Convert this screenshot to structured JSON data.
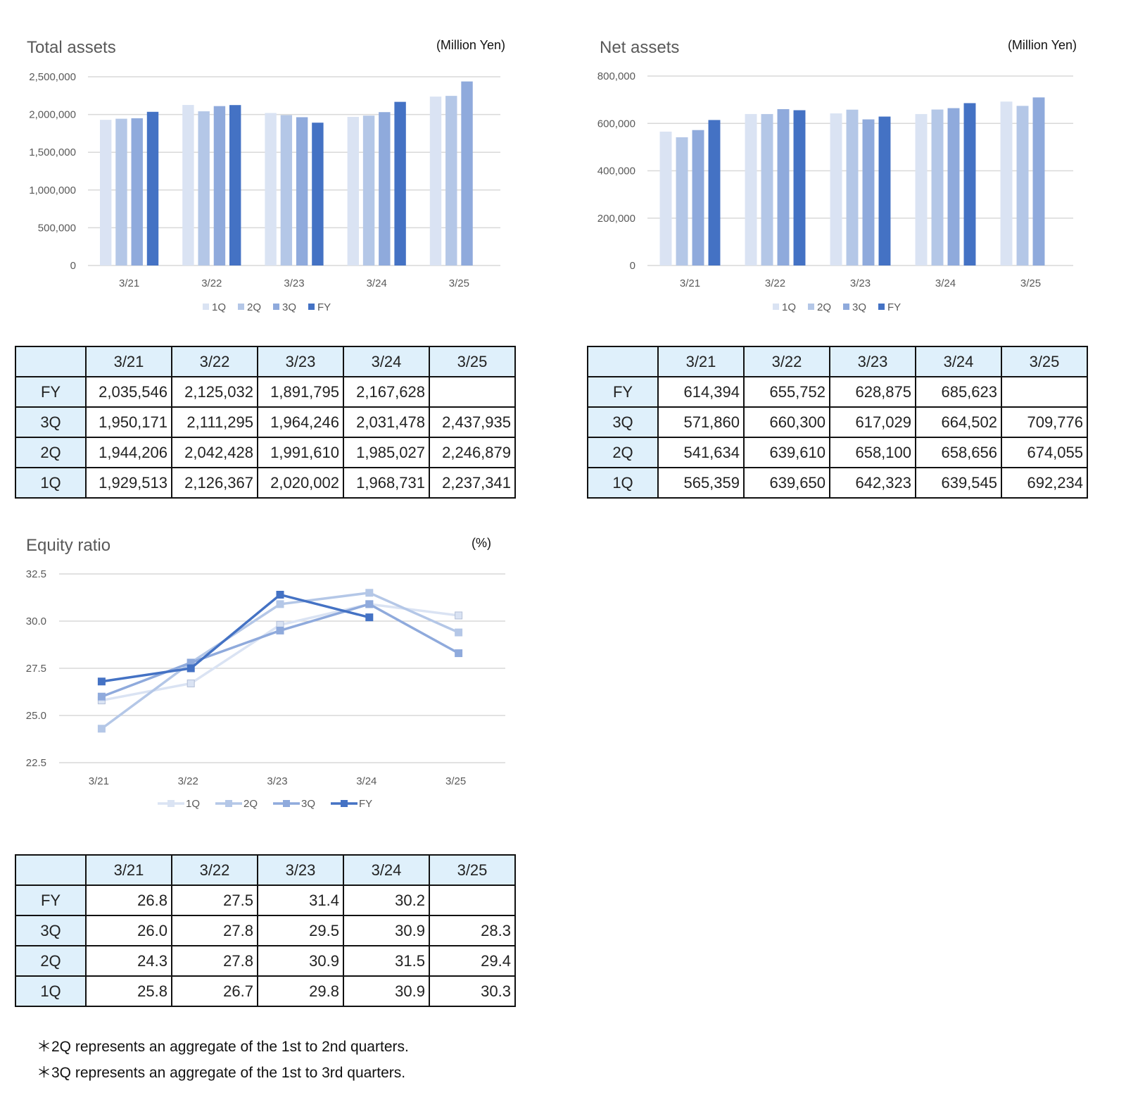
{
  "colors": {
    "1Q": "#dae3f3",
    "2Q": "#b4c7e7",
    "3Q": "#8faadc",
    "FY": "#4472c4",
    "header_bg": "#dff0fb"
  },
  "chart_data": [
    {
      "type": "bar",
      "title": "Total assets",
      "unit": "(Million Yen)",
      "categories": [
        "3/21",
        "3/22",
        "3/23",
        "3/24",
        "3/25"
      ],
      "ylim": [
        0,
        2500000
      ],
      "yticks": [
        "0",
        "500,000",
        "1,000,000",
        "1,500,000",
        "2,000,000",
        "2,500,000"
      ],
      "grid": true,
      "legend": "bottom",
      "series": [
        {
          "name": "1Q",
          "values": [
            1929513,
            2126367,
            2020002,
            1968731,
            2237341
          ]
        },
        {
          "name": "2Q",
          "values": [
            1944206,
            2042428,
            1991610,
            1985027,
            2246879
          ]
        },
        {
          "name": "3Q",
          "values": [
            1950171,
            2111295,
            1964246,
            2031478,
            2437935
          ]
        },
        {
          "name": "FY",
          "values": [
            2035546,
            2125032,
            1891795,
            2167628,
            null
          ]
        }
      ]
    },
    {
      "type": "bar",
      "title": "Net assets",
      "unit": "(Million Yen)",
      "categories": [
        "3/21",
        "3/22",
        "3/23",
        "3/24",
        "3/25"
      ],
      "ylim": [
        0,
        800000
      ],
      "yticks": [
        "0",
        "200,000",
        "400,000",
        "600,000",
        "800,000"
      ],
      "grid": true,
      "legend": "bottom",
      "series": [
        {
          "name": "1Q",
          "values": [
            565359,
            639650,
            642323,
            639545,
            692234
          ]
        },
        {
          "name": "2Q",
          "values": [
            541634,
            639610,
            658100,
            658656,
            674055
          ]
        },
        {
          "name": "3Q",
          "values": [
            571860,
            660300,
            617029,
            664502,
            709776
          ]
        },
        {
          "name": "FY",
          "values": [
            614394,
            655752,
            628875,
            685623,
            null
          ]
        }
      ]
    },
    {
      "type": "line",
      "title": "Equity ratio",
      "unit": "(%)",
      "categories": [
        "3/21",
        "3/22",
        "3/23",
        "3/24",
        "3/25"
      ],
      "ylim": [
        22.5,
        32.5
      ],
      "yticks": [
        "22.5",
        "25.0",
        "27.5",
        "30.0",
        "32.5"
      ],
      "grid": true,
      "legend": "bottom",
      "series": [
        {
          "name": "1Q",
          "values": [
            25.8,
            26.7,
            29.8,
            30.9,
            30.3
          ]
        },
        {
          "name": "2Q",
          "values": [
            24.3,
            27.8,
            30.9,
            31.5,
            29.4
          ]
        },
        {
          "name": "3Q",
          "values": [
            26.0,
            27.8,
            29.5,
            30.9,
            28.3
          ]
        },
        {
          "name": "FY",
          "values": [
            26.8,
            27.5,
            31.4,
            30.2,
            null
          ]
        }
      ]
    }
  ],
  "tables": [
    {
      "header": [
        "",
        "3/21",
        "3/22",
        "3/23",
        "3/24",
        "3/25"
      ],
      "rows": [
        [
          "FY",
          "2,035,546",
          "2,125,032",
          "1,891,795",
          "2,167,628",
          ""
        ],
        [
          "3Q",
          "1,950,171",
          "2,111,295",
          "1,964,246",
          "2,031,478",
          "2,437,935"
        ],
        [
          "2Q",
          "1,944,206",
          "2,042,428",
          "1,991,610",
          "1,985,027",
          "2,246,879"
        ],
        [
          "1Q",
          "1,929,513",
          "2,126,367",
          "2,020,002",
          "1,968,731",
          "2,237,341"
        ]
      ]
    },
    {
      "header": [
        "",
        "3/21",
        "3/22",
        "3/23",
        "3/24",
        "3/25"
      ],
      "rows": [
        [
          "FY",
          "614,394",
          "655,752",
          "628,875",
          "685,623",
          ""
        ],
        [
          "3Q",
          "571,860",
          "660,300",
          "617,029",
          "664,502",
          "709,776"
        ],
        [
          "2Q",
          "541,634",
          "639,610",
          "658,100",
          "658,656",
          "674,055"
        ],
        [
          "1Q",
          "565,359",
          "639,650",
          "642,323",
          "639,545",
          "692,234"
        ]
      ]
    },
    {
      "header": [
        "",
        "3/21",
        "3/22",
        "3/23",
        "3/24",
        "3/25"
      ],
      "rows": [
        [
          "FY",
          "26.8",
          "27.5",
          "31.4",
          "30.2",
          ""
        ],
        [
          "3Q",
          "26.0",
          "27.8",
          "29.5",
          "30.9",
          "28.3"
        ],
        [
          "2Q",
          "24.3",
          "27.8",
          "30.9",
          "31.5",
          "29.4"
        ],
        [
          "1Q",
          "25.8",
          "26.7",
          "29.8",
          "30.9",
          "30.3"
        ]
      ]
    }
  ],
  "notes": [
    "＊2Q represents an aggregate of the 1st to 2nd quarters.",
    "＊3Q represents an aggregate of the 1st to 3rd quarters."
  ]
}
